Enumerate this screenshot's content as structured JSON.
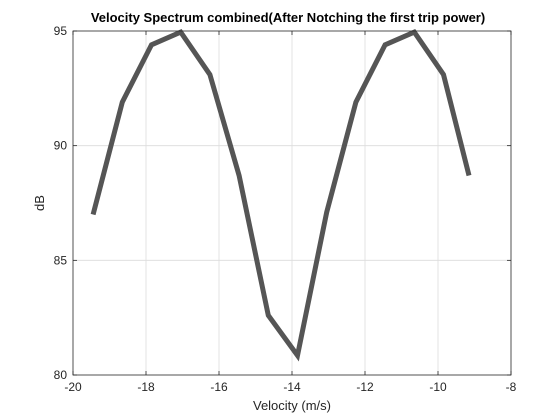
{
  "chart_data": {
    "type": "line",
    "title": "Velocity Spectrum combined(After Notching the first trip power)",
    "xlabel": "Velocity (m/s)",
    "ylabel": "dB",
    "xlim": [
      -20,
      -8
    ],
    "ylim": [
      80,
      95
    ],
    "xticks": [
      -20,
      -18,
      -16,
      -14,
      -12,
      -10,
      -8
    ],
    "yticks": [
      80,
      85,
      90,
      95
    ],
    "grid": true,
    "series": [
      {
        "color": "#555555",
        "x": [
          -19.45,
          -18.65,
          -17.85,
          -17.05,
          -16.25,
          -15.45,
          -14.65,
          -13.85,
          -13.05,
          -12.25,
          -11.45,
          -10.65,
          -9.85,
          -9.15
        ],
        "y": [
          87.0,
          91.9,
          94.4,
          94.95,
          93.1,
          88.7,
          82.6,
          80.85,
          87.1,
          91.9,
          94.4,
          94.95,
          93.1,
          88.7
        ]
      }
    ]
  }
}
